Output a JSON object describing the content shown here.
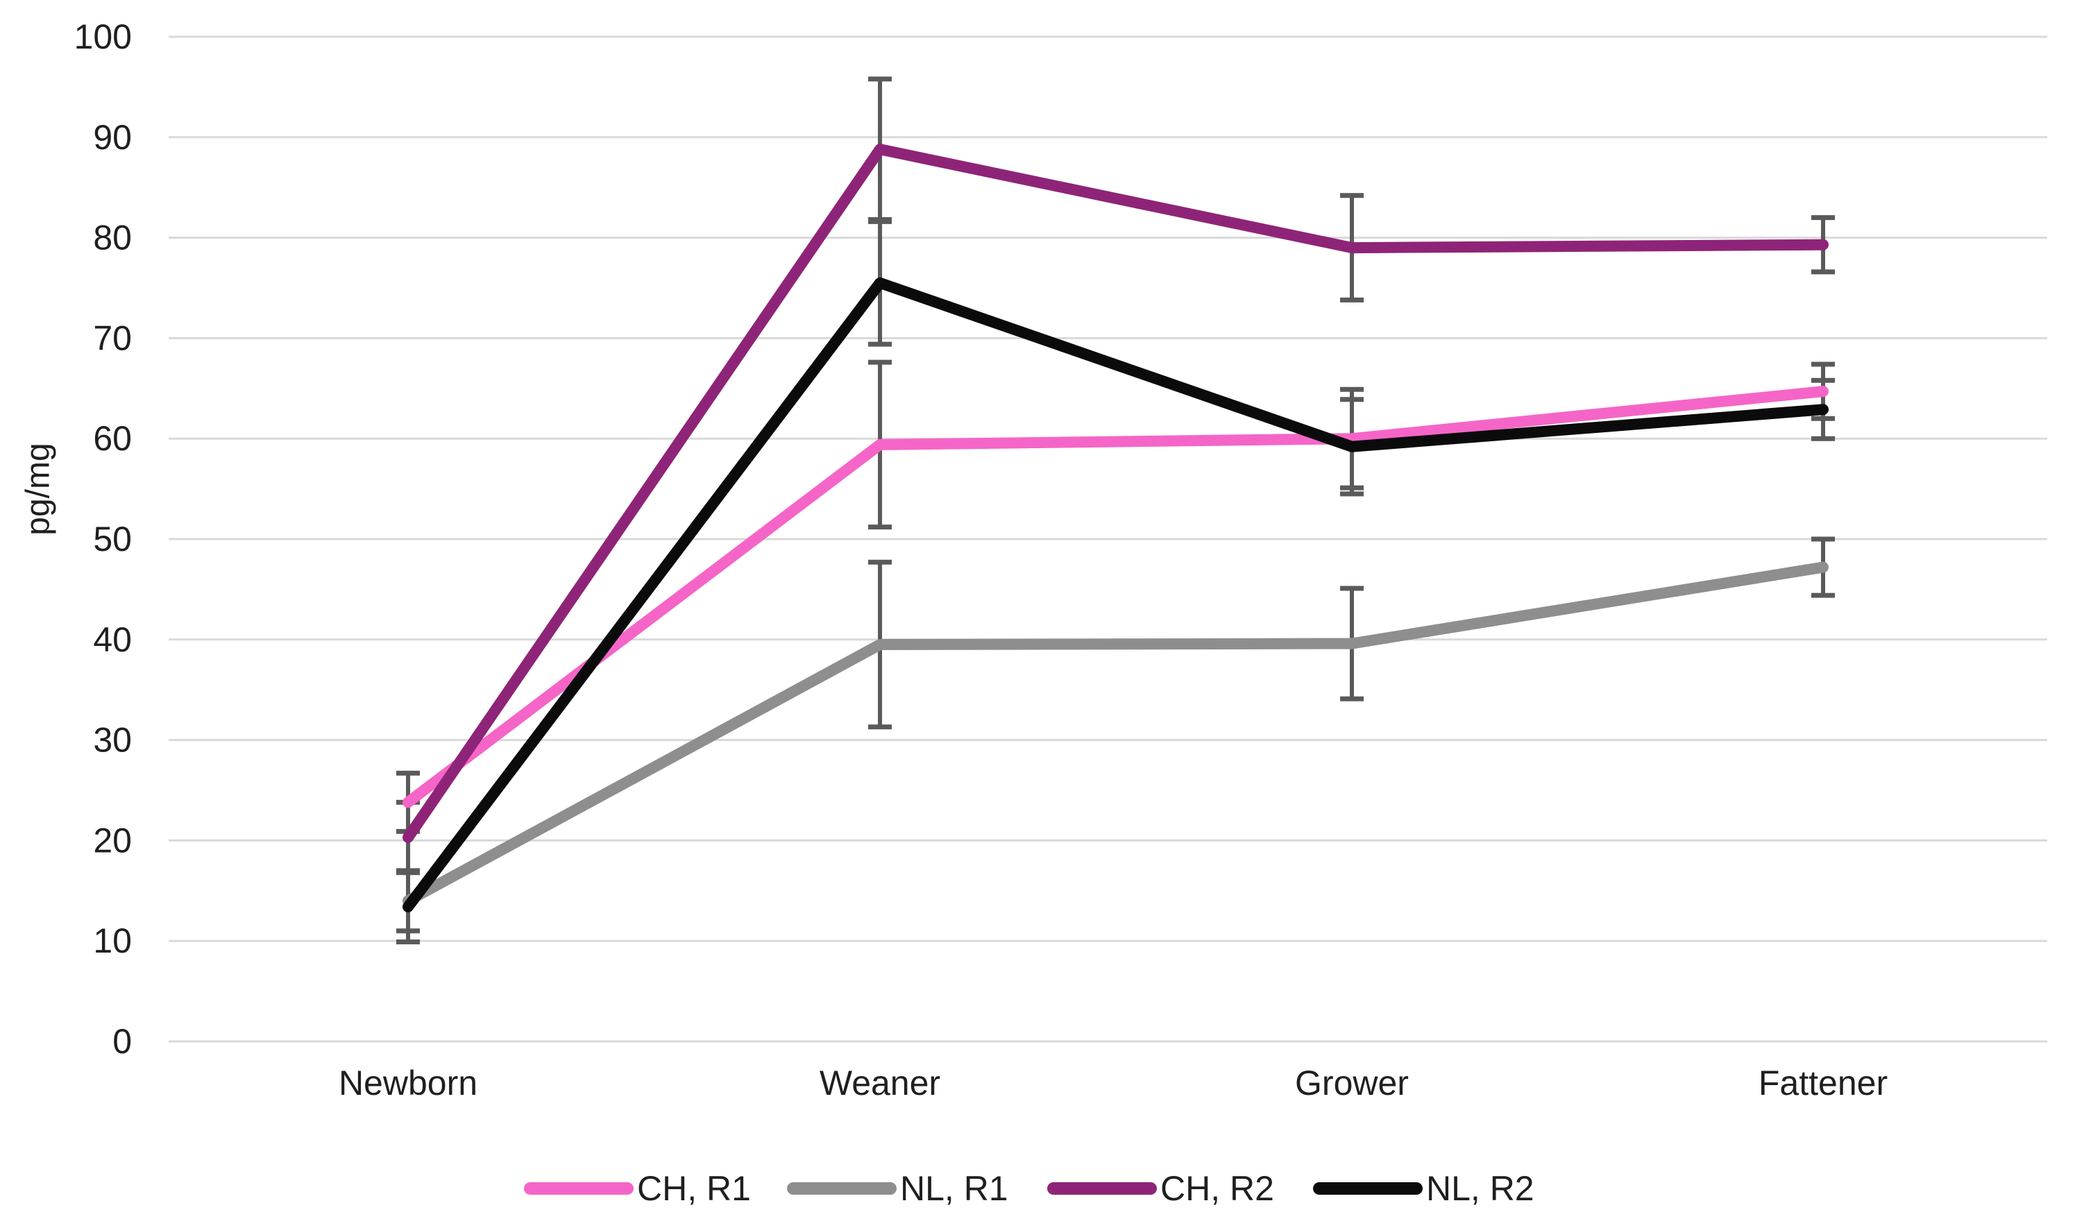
{
  "chart_data": {
    "type": "line",
    "title": "",
    "xlabel": "",
    "ylabel": "pg/mg",
    "ylim": [
      0,
      100
    ],
    "ytick_step": 10,
    "ytick_labels": [
      "0",
      "10",
      "20",
      "30",
      "40",
      "50",
      "60",
      "70",
      "80",
      "90",
      "100"
    ],
    "grid": "horizontal",
    "gridline_color": "#d9d9d9",
    "error_bar_color": "#5a5a5a",
    "text_color": "#1f1f1f",
    "legend_position": "bottom",
    "categories": [
      "Newborn",
      "Weaner",
      "Grower",
      "Fattener"
    ],
    "series": [
      {
        "name": "CH, R1",
        "color": "#f565c8",
        "values": [
          23.8,
          59.4,
          60.0,
          64.7
        ],
        "errors": [
          2.9,
          8.2,
          4.9,
          2.7
        ]
      },
      {
        "name": "NL, R1",
        "color": "#8e8e8e",
        "values": [
          14.0,
          39.5,
          39.6,
          47.2
        ],
        "errors": [
          3.0,
          8.2,
          5.5,
          2.8
        ]
      },
      {
        "name": "CH, R2",
        "color": "#8e2478",
        "values": [
          20.3,
          88.8,
          79.0,
          79.3
        ],
        "errors": [
          3.5,
          7.0,
          5.2,
          2.7
        ]
      },
      {
        "name": "NL, R2",
        "color": "#0b0b0b",
        "values": [
          13.4,
          75.5,
          59.2,
          62.9
        ],
        "errors": [
          3.5,
          6.1,
          4.7,
          2.9
        ]
      }
    ]
  }
}
